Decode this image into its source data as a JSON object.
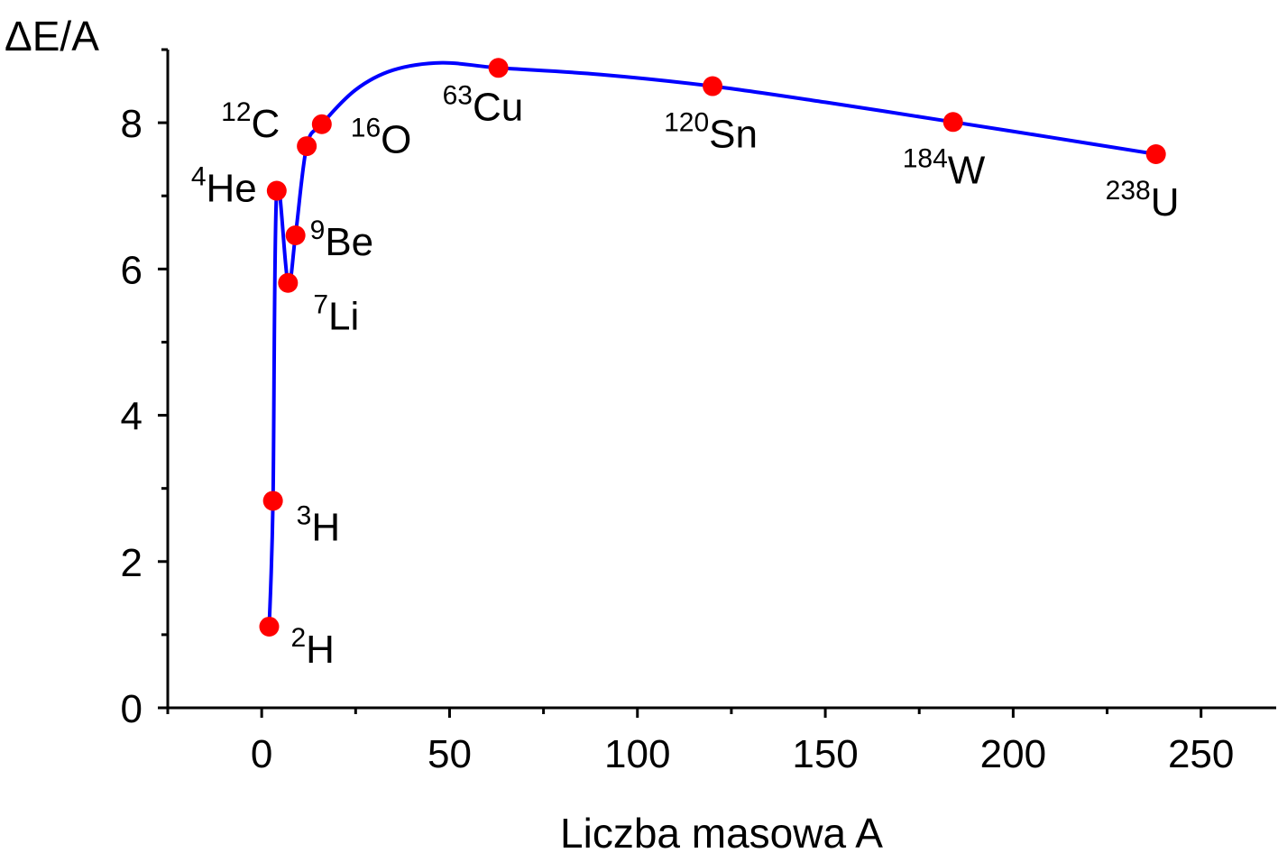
{
  "chart_data": {
    "type": "line",
    "title": "",
    "xlabel": "Liczba masowa A",
    "ylabel": "ΔE/A",
    "xlim": [
      -25,
      270
    ],
    "ylim": [
      0,
      9
    ],
    "x_ticks": [
      0,
      50,
      100,
      150,
      200,
      250
    ],
    "x_tick_labels": [
      "0",
      "50",
      "100",
      "150",
      "200",
      "250"
    ],
    "y_ticks": [
      0,
      2,
      4,
      6,
      8
    ],
    "y_tick_labels": [
      "0",
      "2",
      "4",
      "6",
      "8"
    ],
    "grid": false,
    "legend": "none",
    "line_color": "#0000ff",
    "marker_color": "#ff0000",
    "points": [
      {
        "mass": "2",
        "symbol": "H",
        "A": 2,
        "value": 1.11
      },
      {
        "mass": "3",
        "symbol": "H",
        "A": 3,
        "value": 2.83
      },
      {
        "mass": "4",
        "symbol": "He",
        "A": 4,
        "value": 7.07
      },
      {
        "mass": "7",
        "symbol": "Li",
        "A": 7,
        "value": 5.81
      },
      {
        "mass": "9",
        "symbol": "Be",
        "A": 9,
        "value": 6.46
      },
      {
        "mass": "12",
        "symbol": "C",
        "A": 12,
        "value": 7.68
      },
      {
        "mass": "16",
        "symbol": "O",
        "A": 16,
        "value": 7.98
      },
      {
        "mass": "63",
        "symbol": "Cu",
        "A": 63,
        "value": 8.75
      },
      {
        "mass": "120",
        "symbol": "Sn",
        "A": 120,
        "value": 8.5
      },
      {
        "mass": "184",
        "symbol": "W",
        "A": 184,
        "value": 8.01
      },
      {
        "mass": "238",
        "symbol": "U",
        "A": 238,
        "value": 7.57
      }
    ],
    "curve": {
      "x": [
        2,
        3,
        4,
        7,
        9,
        12,
        16,
        25,
        35,
        48,
        63,
        90,
        120,
        150,
        184,
        210,
        238
      ],
      "y": [
        1.11,
        2.83,
        7.07,
        5.81,
        6.46,
        7.68,
        7.98,
        8.45,
        8.72,
        8.82,
        8.75,
        8.66,
        8.5,
        8.28,
        8.01,
        7.8,
        7.57
      ]
    }
  }
}
